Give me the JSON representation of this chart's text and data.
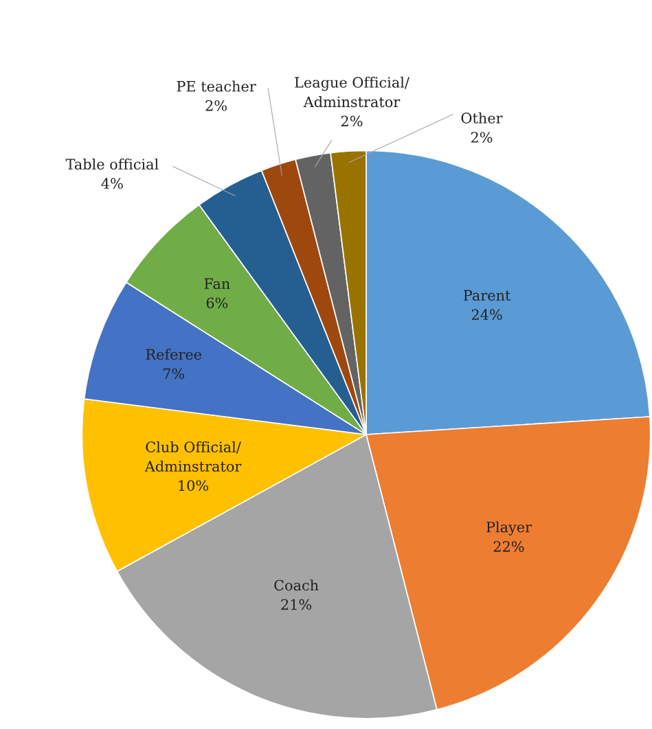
{
  "chart_data": {
    "type": "pie",
    "categories": [
      "Parent",
      "Player",
      "Coach",
      "Club Official/\nAdminstrator",
      "Referee",
      "Fan",
      "Table official",
      "PE teacher",
      "League Official/\nAdminstrator",
      "Other"
    ],
    "values": [
      24,
      22,
      21,
      10,
      7,
      6,
      4,
      2,
      2,
      2
    ],
    "colors": [
      "#5b9bd5",
      "#ed7d31",
      "#a5a5a5",
      "#ffc000",
      "#4472c4",
      "#70ad47",
      "#255e91",
      "#9e480e",
      "#636363",
      "#997300"
    ],
    "value_labels": [
      "24%",
      "22%",
      "21%",
      "10%",
      "7%",
      "6%",
      "4%",
      "2%",
      "2%",
      "2%"
    ]
  }
}
